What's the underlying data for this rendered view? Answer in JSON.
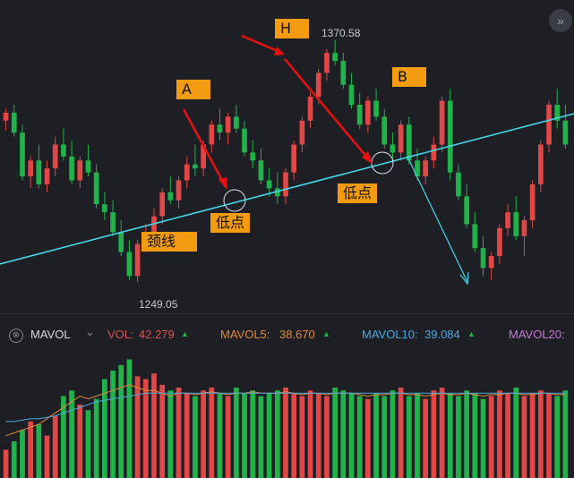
{
  "annotations": {
    "A": "A",
    "H": "H",
    "B": "B",
    "low1": "低点",
    "low2": "低点",
    "neckline": "颈线",
    "high_price": "1370.58",
    "low_price": "1249.05"
  },
  "legend": {
    "close_icon": "⊗",
    "indicator": "MAVOL",
    "chevron": "⌄",
    "vol_label": "VOL:",
    "vol_value": "42.279",
    "mavol5_label": "MAVOL5:",
    "mavol5_value": "38.670",
    "mavol10_label": "MAVOL10:",
    "mavol10_value": "39.084",
    "mavol20_label": "MAVOL20:",
    "up_arrow": "▲"
  },
  "corner_button": "»",
  "colors": {
    "background": "#1e1f24",
    "up": "#e04848",
    "down": "#22b24c",
    "neckline": "#45d6e6",
    "arrow": "#e81010",
    "label_bg": "#f39c12",
    "vol_color": "#e05050",
    "mavol5_color": "#e0893a",
    "mavol10_color": "#4aa8e0",
    "mavol20_color": "#c97ad9"
  },
  "chart_data": {
    "type": "candlestick",
    "price_high_label": 1370.58,
    "price_low_label": 1249.05,
    "candles": [
      [
        1330,
        1336,
        1325,
        1334
      ],
      [
        1334,
        1338,
        1322,
        1324
      ],
      [
        1324,
        1328,
        1300,
        1302
      ],
      [
        1302,
        1312,
        1296,
        1310
      ],
      [
        1310,
        1318,
        1296,
        1298
      ],
      [
        1298,
        1310,
        1294,
        1306
      ],
      [
        1306,
        1322,
        1302,
        1318
      ],
      [
        1318,
        1326,
        1310,
        1312
      ],
      [
        1312,
        1320,
        1298,
        1300
      ],
      [
        1300,
        1312,
        1296,
        1310
      ],
      [
        1310,
        1318,
        1302,
        1304
      ],
      [
        1304,
        1308,
        1286,
        1288
      ],
      [
        1288,
        1294,
        1280,
        1284
      ],
      [
        1284,
        1290,
        1272,
        1274
      ],
      [
        1274,
        1280,
        1262,
        1264
      ],
      [
        1264,
        1270,
        1250,
        1252
      ],
      [
        1252,
        1270,
        1249,
        1268
      ],
      [
        1268,
        1278,
        1264,
        1274
      ],
      [
        1274,
        1286,
        1270,
        1282
      ],
      [
        1282,
        1296,
        1278,
        1294
      ],
      [
        1294,
        1302,
        1288,
        1290
      ],
      [
        1290,
        1302,
        1286,
        1300
      ],
      [
        1300,
        1312,
        1296,
        1308
      ],
      [
        1308,
        1318,
        1302,
        1306
      ],
      [
        1306,
        1320,
        1302,
        1318
      ],
      [
        1318,
        1330,
        1314,
        1328
      ],
      [
        1328,
        1336,
        1320,
        1324
      ],
      [
        1324,
        1334,
        1318,
        1332
      ],
      [
        1332,
        1338,
        1324,
        1326
      ],
      [
        1326,
        1330,
        1312,
        1314
      ],
      [
        1314,
        1320,
        1306,
        1310
      ],
      [
        1310,
        1316,
        1298,
        1300
      ],
      [
        1300,
        1306,
        1292,
        1296
      ],
      [
        1296,
        1304,
        1288,
        1292
      ],
      [
        1292,
        1306,
        1288,
        1304
      ],
      [
        1304,
        1320,
        1300,
        1318
      ],
      [
        1318,
        1332,
        1314,
        1330
      ],
      [
        1330,
        1344,
        1326,
        1342
      ],
      [
        1342,
        1356,
        1338,
        1354
      ],
      [
        1354,
        1366,
        1350,
        1364
      ],
      [
        1364,
        1370.58,
        1358,
        1360
      ],
      [
        1360,
        1364,
        1346,
        1348
      ],
      [
        1348,
        1354,
        1336,
        1338
      ],
      [
        1338,
        1344,
        1326,
        1328
      ],
      [
        1328,
        1342,
        1324,
        1340
      ],
      [
        1340,
        1346,
        1330,
        1332
      ],
      [
        1332,
        1336,
        1316,
        1318
      ],
      [
        1318,
        1324,
        1310,
        1314
      ],
      [
        1314,
        1330,
        1310,
        1328
      ],
      [
        1328,
        1332,
        1308,
        1310
      ],
      [
        1310,
        1316,
        1300,
        1302
      ],
      [
        1302,
        1312,
        1298,
        1310
      ],
      [
        1310,
        1322,
        1306,
        1318
      ],
      [
        1318,
        1342,
        1314,
        1340
      ],
      [
        1340,
        1346,
        1300,
        1304
      ],
      [
        1304,
        1308,
        1290,
        1292
      ],
      [
        1292,
        1298,
        1276,
        1278
      ],
      [
        1278,
        1284,
        1264,
        1266
      ],
      [
        1266,
        1272,
        1252,
        1256
      ],
      [
        1256,
        1264,
        1250,
        1262
      ],
      [
        1262,
        1278,
        1258,
        1276
      ],
      [
        1276,
        1288,
        1272,
        1284
      ],
      [
        1284,
        1292,
        1270,
        1272
      ],
      [
        1272,
        1282,
        1262,
        1280
      ],
      [
        1280,
        1300,
        1276,
        1298
      ],
      [
        1298,
        1320,
        1294,
        1318
      ],
      [
        1318,
        1340,
        1314,
        1338
      ],
      [
        1338,
        1346,
        1326,
        1330
      ],
      [
        1330,
        1338,
        1316,
        1318
      ]
    ],
    "volumes": [
      20,
      26,
      34,
      40,
      38,
      30,
      44,
      58,
      62,
      52,
      48,
      56,
      70,
      76,
      80,
      84,
      72,
      70,
      74,
      66,
      62,
      64,
      60,
      58,
      62,
      64,
      60,
      58,
      64,
      60,
      62,
      58,
      60,
      62,
      64,
      60,
      58,
      62,
      60,
      58,
      64,
      62,
      60,
      58,
      56,
      60,
      58,
      62,
      64,
      58,
      60,
      56,
      62,
      64,
      60,
      58,
      62,
      60,
      56,
      58,
      62,
      60,
      64,
      58,
      60,
      62,
      60,
      58,
      62
    ],
    "mavol5_series": [
      30,
      32,
      34,
      36,
      38,
      42,
      46,
      50,
      54,
      58,
      56,
      58,
      60,
      62,
      64,
      66,
      64,
      62,
      62,
      60,
      58,
      60,
      60,
      59,
      60,
      61,
      60,
      59,
      60,
      60,
      61,
      60,
      60,
      60,
      61,
      60,
      59,
      60,
      60,
      59,
      60,
      60,
      60,
      59,
      58,
      59,
      59,
      60,
      60,
      59,
      59,
      58,
      59,
      60,
      59,
      59,
      60,
      59,
      58,
      59,
      59,
      60,
      60,
      59,
      59,
      60,
      60,
      59,
      59
    ],
    "mavol10_series": [
      40,
      40,
      41,
      42,
      42,
      43,
      44,
      46,
      48,
      50,
      52,
      54,
      55,
      56,
      57,
      58,
      59,
      60,
      60,
      60,
      60,
      60,
      60,
      60,
      60,
      60,
      60,
      60,
      60,
      60,
      60,
      60,
      60,
      60,
      60,
      60,
      60,
      60,
      60,
      60,
      60,
      60,
      60,
      60,
      60,
      60,
      60,
      60,
      60,
      60,
      60,
      60,
      60,
      60,
      60,
      60,
      60,
      60,
      60,
      60,
      60,
      60,
      60,
      60,
      60,
      60,
      60,
      60,
      60
    ]
  }
}
